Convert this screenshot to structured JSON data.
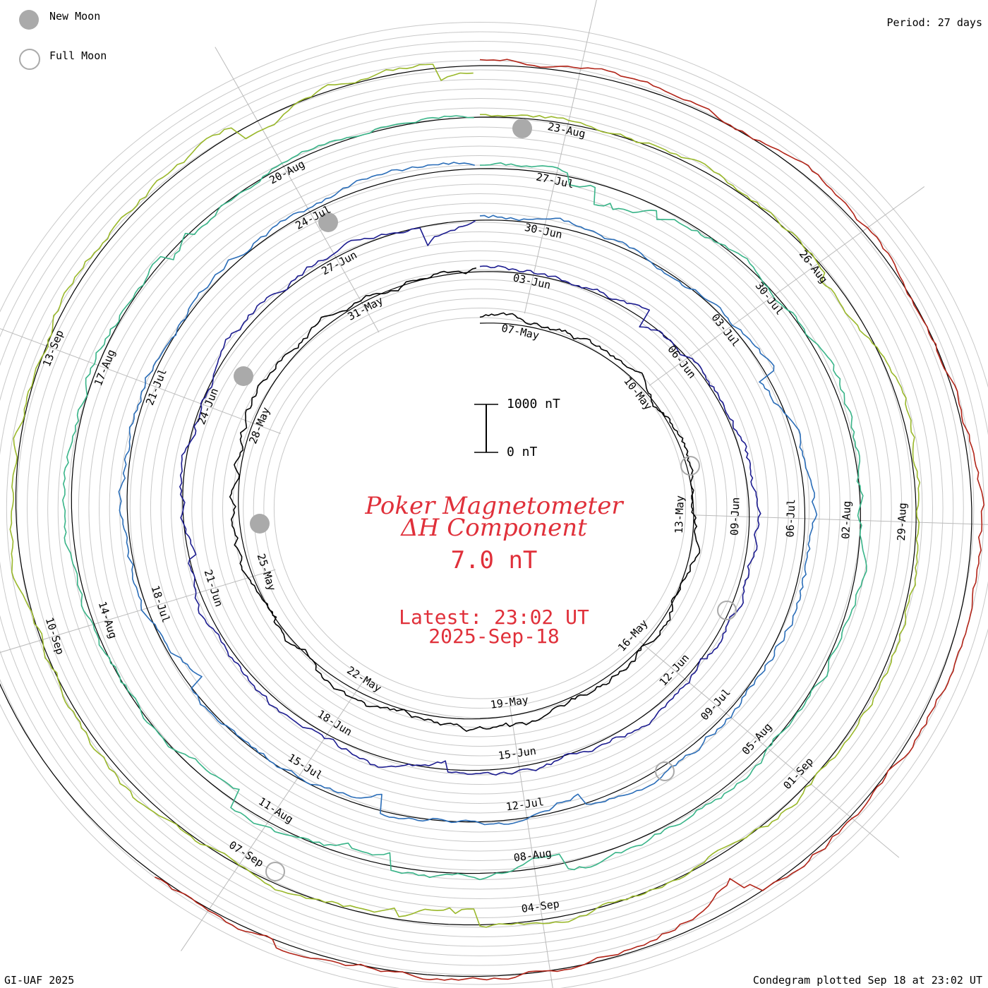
{
  "legend": {
    "new_moon_label": "New Moon",
    "full_moon_label": "Full Moon",
    "new_moon_color": "#aaaaaa",
    "full_moon_color": "#aaaaaa"
  },
  "period_text": "Period: 27 days",
  "credit_text": "GI-UAF 2025",
  "plotted_text": "Condegram plotted Sep 18 at 23:02 UT",
  "title": {
    "line1": "Poker Magnetometer",
    "line2": "ΔH Component",
    "value": "7.0 nT",
    "latest": "Latest: 23:02 UT",
    "date": "2025-Sep-18",
    "color": "#e0303a"
  },
  "scale": {
    "top_label": "1000 nT",
    "bottom_label": "0 nT"
  },
  "chart_data": {
    "type": "line",
    "title": "Poker Magnetometer ΔH Component",
    "subtitle": "Condegram (spiral plot), period 27 days",
    "units": "nT",
    "scale_bar_nT": [
      0,
      1000
    ],
    "current_value_nT": 7.0,
    "rotations": [
      {
        "name": "rotation 1",
        "color": "#000000",
        "date_labels": [
          "07-May",
          "10-May",
          "13-May",
          "16-May",
          "19-May",
          "22-May",
          "25-May",
          "28-May",
          "31-May"
        ]
      },
      {
        "name": "rotation 2",
        "color": "#1c1c90",
        "date_labels": [
          "03-Jun",
          "06-Jun",
          "09-Jun",
          "12-Jun",
          "15-Jun",
          "18-Jun",
          "21-Jun",
          "24-Jun",
          "27-Jun"
        ]
      },
      {
        "name": "rotation 3",
        "color": "#2a6db8",
        "date_labels": [
          "30-Jun",
          "03-Jul",
          "06-Jul",
          "09-Jul",
          "12-Jul",
          "15-Jul",
          "18-Jul",
          "21-Jul",
          "24-Jul"
        ]
      },
      {
        "name": "rotation 4",
        "color": "#38b488",
        "date_labels": [
          "27-Jul",
          "30-Jul",
          "02-Aug",
          "05-Aug",
          "08-Aug",
          "11-Aug",
          "14-Aug",
          "17-Aug",
          "20-Aug"
        ]
      },
      {
        "name": "rotation 5",
        "color": "#9ab82a",
        "date_labels": [
          "23-Aug",
          "26-Aug",
          "29-Aug",
          "01-Sep",
          "04-Sep",
          "07-Sep",
          "10-Sep",
          "13-Sep"
        ]
      },
      {
        "name": "rotation 6",
        "color": "#b22418",
        "date_labels": []
      }
    ],
    "new_moon_dates": [
      "27-May",
      "25-Jun",
      "24-Jul",
      "23-Aug"
    ],
    "full_moon_dates": [
      "11-Jun",
      "10-Jul",
      "09-Aug",
      "07-Sep"
    ]
  }
}
